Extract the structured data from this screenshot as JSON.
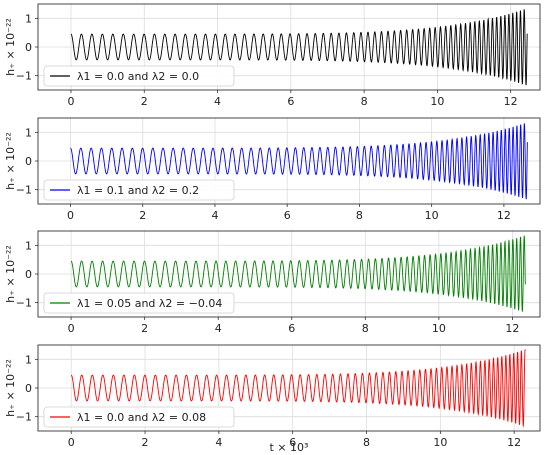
{
  "chart_data": [
    {
      "type": "line",
      "series": [
        {
          "name": "λ1 = 0.0 and λ2 = 0.0",
          "color": "#000000",
          "t_start": 0.0,
          "t_end": 12.45,
          "f_start": 3.5,
          "f_end": 10.0,
          "a_start": 0.45,
          "a_end": 1.35
        }
      ],
      "xlim": [
        -0.9,
        12.8
      ],
      "ylim": [
        -1.5,
        1.5
      ],
      "xticks": [
        0,
        2,
        4,
        6,
        8,
        10,
        12
      ],
      "yticks": [
        -1,
        0,
        1
      ],
      "ylabel": "h₊ × 10⁻²²",
      "xlabel": "",
      "grid": true,
      "legend_position": "lower-left"
    },
    {
      "type": "line",
      "series": [
        {
          "name": "λ1 = 0.1 and λ2 = 0.2",
          "color": "#0000ff",
          "t_start": 0.0,
          "t_end": 12.65,
          "f_start": 3.5,
          "f_end": 10.0,
          "a_start": 0.45,
          "a_end": 1.35
        }
      ],
      "xlim": [
        -0.9,
        13.0
      ],
      "ylim": [
        -1.5,
        1.5
      ],
      "xticks": [
        0,
        2,
        4,
        6,
        8,
        10,
        12
      ],
      "yticks": [
        -1,
        0,
        1
      ],
      "ylabel": "h₊ × 10⁻²²",
      "xlabel": "",
      "grid": true,
      "legend_position": "lower-left"
    },
    {
      "type": "line",
      "series": [
        {
          "name": "λ1 = 0.05 and λ2 = −0.04",
          "color": "#008000",
          "t_start": 0.0,
          "t_end": 12.35,
          "f_start": 3.5,
          "f_end": 10.0,
          "a_start": 0.45,
          "a_end": 1.35
        }
      ],
      "xlim": [
        -0.9,
        12.75
      ],
      "ylim": [
        -1.5,
        1.5
      ],
      "xticks": [
        0,
        2,
        4,
        6,
        8,
        10,
        12
      ],
      "yticks": [
        -1,
        0,
        1
      ],
      "ylabel": "h₊ × 10⁻²²",
      "xlabel": "",
      "grid": true,
      "legend_position": "lower-left"
    },
    {
      "type": "line",
      "series": [
        {
          "name": "λ1 = 0.0 and λ2 = 0.08",
          "color": "#ff0000",
          "t_start": 0.0,
          "t_end": 12.3,
          "f_start": 3.5,
          "f_end": 10.0,
          "a_start": 0.45,
          "a_end": 1.35
        }
      ],
      "xlim": [
        -0.9,
        12.7
      ],
      "ylim": [
        -1.5,
        1.5
      ],
      "xticks": [
        0,
        2,
        4,
        6,
        8,
        10,
        12
      ],
      "yticks": [
        -1,
        0,
        1
      ],
      "ylabel": "h₊ × 10⁻²²",
      "xlabel": "t × 10³",
      "grid": true,
      "legend_position": "lower-left"
    }
  ]
}
